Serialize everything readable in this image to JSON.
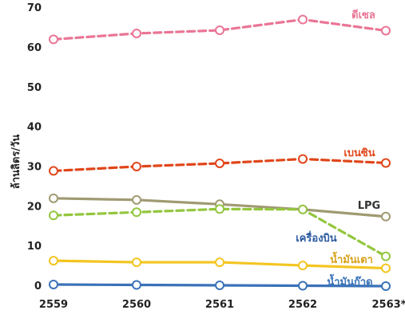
{
  "chart_data": {
    "type": "line",
    "title": "",
    "xlabel": "",
    "ylabel": "ล้านลิตร/วัน",
    "x": [
      "2559",
      "2560",
      "2561",
      "2562",
      "2563*"
    ],
    "ylim": [
      0,
      70
    ],
    "yticks": [
      "0",
      "10",
      "20",
      "30",
      "40",
      "50",
      "60",
      "70"
    ],
    "grid": false,
    "series": [
      {
        "name": "ดีเซล",
        "values": [
          61.9,
          63.4,
          64.2,
          66.9,
          64.1
        ],
        "color": "#ea7595",
        "dashed": true
      },
      {
        "name": "เบนซิน",
        "values": [
          28.8,
          29.9,
          30.7,
          31.8,
          30.8
        ],
        "color": "#e0461a",
        "dashed": true
      },
      {
        "name": "LPG",
        "values": [
          21.9,
          21.5,
          20.4,
          19.1,
          17.3
        ],
        "color": "#a09a72",
        "dashed": false
      },
      {
        "name": "เครื่องบิน",
        "values": [
          17.6,
          18.4,
          19.2,
          19.1,
          7.3
        ],
        "color": "#93c63e",
        "dashed": true
      },
      {
        "name": "น้ำมันเตา",
        "values": [
          6.2,
          5.8,
          5.8,
          5.0,
          4.3
        ],
        "color": "#f3c521",
        "dashed": false
      },
      {
        "name": "น้ำมันก๊าด",
        "values": [
          0.2,
          0.1,
          0.0,
          -0.1,
          -0.2
        ],
        "color": "#3a72b8",
        "dashed": false
      }
    ]
  }
}
